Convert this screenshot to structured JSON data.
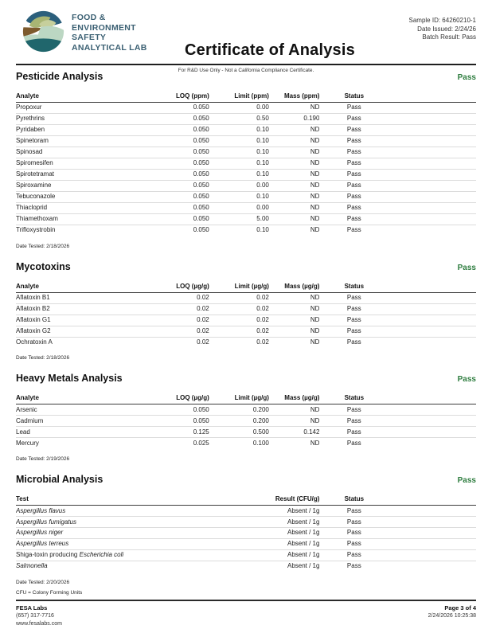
{
  "header": {
    "logo_lines": [
      "FOOD &",
      "ENVIRONMENT",
      "SAFETY",
      "ANALYTICAL LAB"
    ],
    "title": "Certificate of Analysis",
    "subtitle": "For R&D Use Only - Not a California Compliance Certificate.",
    "meta": [
      "Sample ID: 64260210-1",
      "Date Issued: 2/24/26",
      "Batch Result: Pass"
    ]
  },
  "colors": {
    "pass_green": "#2E7D3F",
    "logo_text": "#3A5F72",
    "logo_dark_blue": "#2B5F7C",
    "logo_sage": "#A8B573",
    "logo_light_sage": "#C6CF9C",
    "logo_brown": "#7D5A2D",
    "logo_seafoam": "#BCD7C3",
    "logo_teal": "#20666C"
  },
  "sections": [
    {
      "title": "Pesticide Analysis",
      "status": "Pass",
      "columns": [
        "Analyte",
        "LOQ (ppm)",
        "Limit (ppm)",
        "Mass (ppm)",
        "Status"
      ],
      "rows": [
        [
          "Propoxur",
          "0.050",
          "0.00",
          "ND",
          "Pass"
        ],
        [
          "Pyrethrins",
          "0.050",
          "0.50",
          "0.190",
          "Pass"
        ],
        [
          "Pyridaben",
          "0.050",
          "0.10",
          "ND",
          "Pass"
        ],
        [
          "Spinetoram",
          "0.050",
          "0.10",
          "ND",
          "Pass"
        ],
        [
          "Spinosad",
          "0.050",
          "0.10",
          "ND",
          "Pass"
        ],
        [
          "Spiromesifen",
          "0.050",
          "0.10",
          "ND",
          "Pass"
        ],
        [
          "Spirotetramat",
          "0.050",
          "0.10",
          "ND",
          "Pass"
        ],
        [
          "Spiroxamine",
          "0.050",
          "0.00",
          "ND",
          "Pass"
        ],
        [
          "Tebuconazole",
          "0.050",
          "0.10",
          "ND",
          "Pass"
        ],
        [
          "Thiacloprid",
          "0.050",
          "0.00",
          "ND",
          "Pass"
        ],
        [
          "Thiamethoxam",
          "0.050",
          "5.00",
          "ND",
          "Pass"
        ],
        [
          "Trifloxystrobin",
          "0.050",
          "0.10",
          "ND",
          "Pass"
        ]
      ],
      "date_tested": "Date Tested: 2/18/2026"
    },
    {
      "title": "Mycotoxins",
      "status": "Pass",
      "columns": [
        "Analyte",
        "LOQ (µg/g)",
        "Limit (µg/g)",
        "Mass (µg/g)",
        "Status"
      ],
      "rows": [
        [
          "Aflatoxin B1",
          "0.02",
          "0.02",
          "ND",
          "Pass"
        ],
        [
          "Aflatoxin B2",
          "0.02",
          "0.02",
          "ND",
          "Pass"
        ],
        [
          "Aflatoxin G1",
          "0.02",
          "0.02",
          "ND",
          "Pass"
        ],
        [
          "Aflatoxin G2",
          "0.02",
          "0.02",
          "ND",
          "Pass"
        ],
        [
          "Ochratoxin A",
          "0.02",
          "0.02",
          "ND",
          "Pass"
        ]
      ],
      "date_tested": "Date Tested: 2/18/2026"
    },
    {
      "title": "Heavy Metals Analysis",
      "status": "Pass",
      "columns": [
        "Analyte",
        "LOQ (µg/g)",
        "Limit (µg/g)",
        "Mass (µg/g)",
        "Status"
      ],
      "rows": [
        [
          "Arsenic",
          "0.050",
          "0.200",
          "ND",
          "Pass"
        ],
        [
          "Cadmium",
          "0.050",
          "0.200",
          "ND",
          "Pass"
        ],
        [
          "Lead",
          "0.125",
          "0.500",
          "0.142",
          "Pass"
        ],
        [
          "Mercury",
          "0.025",
          "0.100",
          "ND",
          "Pass"
        ]
      ],
      "date_tested": "Date Tested: 2/19/2026"
    },
    {
      "title": "Microbial Analysis",
      "status": "Pass",
      "columns": [
        "Test",
        "Result (CFU/g)",
        "Status"
      ],
      "rows": [
        [
          {
            "it": "Aspergillus flavus"
          },
          "Absent / 1g",
          "Pass"
        ],
        [
          {
            "it": "Aspergillus fumigatus"
          },
          "Absent / 1g",
          "Pass"
        ],
        [
          {
            "it": "Aspergillus niger"
          },
          "Absent / 1g",
          "Pass"
        ],
        [
          {
            "it": "Aspergillus terreus"
          },
          "Absent / 1g",
          "Pass"
        ],
        [
          {
            "pre": "Shiga-toxin producing ",
            "it": "Escherichia coli"
          },
          "Absent / 1g",
          "Pass"
        ],
        [
          {
            "it": "Salmonella"
          },
          "Absent / 1g",
          "Pass"
        ]
      ],
      "date_tested": "Date Tested: 2/20/2026",
      "note": "CFU = Colony Forming Units"
    }
  ],
  "footer": {
    "company": "FESA Labs",
    "phone": "(657) 317-7716",
    "website": "www.fesalabs.com",
    "page": "Page 3 of 4",
    "datetime": "2/24/2026 10:25:38"
  }
}
